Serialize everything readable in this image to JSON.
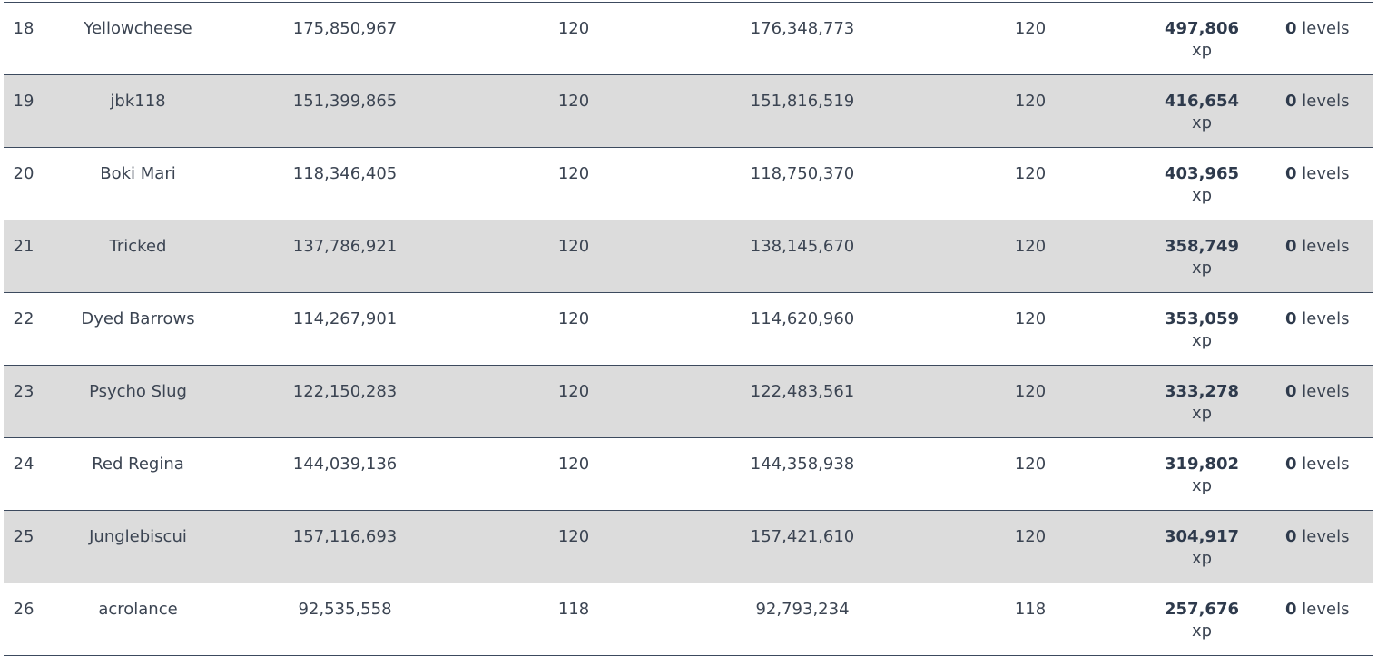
{
  "table": {
    "rows": [
      {
        "rank": "18",
        "name": "Yellowcheese",
        "start_xp": "175,850,967",
        "start_level": "120",
        "end_xp": "176,348,773",
        "end_level": "120",
        "gain": "497,806",
        "gain_unit": "xp",
        "levels": "0",
        "levels_unit": "levels"
      },
      {
        "rank": "19",
        "name": "jbk118",
        "start_xp": "151,399,865",
        "start_level": "120",
        "end_xp": "151,816,519",
        "end_level": "120",
        "gain": "416,654",
        "gain_unit": "xp",
        "levels": "0",
        "levels_unit": "levels"
      },
      {
        "rank": "20",
        "name": "Boki Mari",
        "start_xp": "118,346,405",
        "start_level": "120",
        "end_xp": "118,750,370",
        "end_level": "120",
        "gain": "403,965",
        "gain_unit": "xp",
        "levels": "0",
        "levels_unit": "levels"
      },
      {
        "rank": "21",
        "name": "Tricked",
        "start_xp": "137,786,921",
        "start_level": "120",
        "end_xp": "138,145,670",
        "end_level": "120",
        "gain": "358,749",
        "gain_unit": "xp",
        "levels": "0",
        "levels_unit": "levels"
      },
      {
        "rank": "22",
        "name": "Dyed Barrows",
        "start_xp": "114,267,901",
        "start_level": "120",
        "end_xp": "114,620,960",
        "end_level": "120",
        "gain": "353,059",
        "gain_unit": "xp",
        "levels": "0",
        "levels_unit": "levels"
      },
      {
        "rank": "23",
        "name": "Psycho Slug",
        "start_xp": "122,150,283",
        "start_level": "120",
        "end_xp": "122,483,561",
        "end_level": "120",
        "gain": "333,278",
        "gain_unit": "xp",
        "levels": "0",
        "levels_unit": "levels"
      },
      {
        "rank": "24",
        "name": "Red Regina",
        "start_xp": "144,039,136",
        "start_level": "120",
        "end_xp": "144,358,938",
        "end_level": "120",
        "gain": "319,802",
        "gain_unit": "xp",
        "levels": "0",
        "levels_unit": "levels"
      },
      {
        "rank": "25",
        "name": "Junglebiscui",
        "start_xp": "157,116,693",
        "start_level": "120",
        "end_xp": "157,421,610",
        "end_level": "120",
        "gain": "304,917",
        "gain_unit": "xp",
        "levels": "0",
        "levels_unit": "levels"
      },
      {
        "rank": "26",
        "name": "acrolance",
        "start_xp": "92,535,558",
        "start_level": "118",
        "end_xp": "92,793,234",
        "end_level": "118",
        "gain": "257,676",
        "gain_unit": "xp",
        "levels": "0",
        "levels_unit": "levels"
      }
    ]
  }
}
